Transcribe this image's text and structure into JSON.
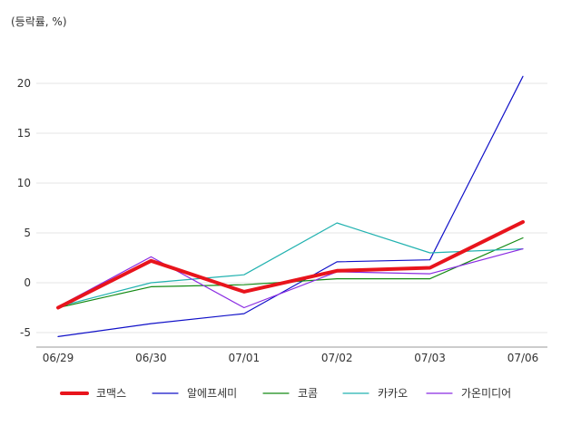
{
  "chart_data": {
    "type": "line",
    "unit_label": "(등락률, %)",
    "categories": [
      "06/29",
      "06/30",
      "07/01",
      "07/02",
      "07/03",
      "07/06"
    ],
    "ylim": [
      -6.5,
      25
    ],
    "yticks": [
      -5,
      0,
      5,
      10,
      15,
      20
    ],
    "grid": true,
    "legend_position": "bottom",
    "series": [
      {
        "name": "코맥스",
        "color": "#e8141c",
        "width": 4,
        "values": [
          -2.5,
          2.2,
          -0.9,
          1.2,
          1.5,
          6.1
        ]
      },
      {
        "name": "알에프세미",
        "color": "#1010c8",
        "width": 1.2,
        "values": [
          -5.4,
          -4.1,
          -3.1,
          2.1,
          2.3,
          20.7
        ]
      },
      {
        "name": "코콤",
        "color": "#138a13",
        "width": 1.2,
        "values": [
          -2.5,
          -0.4,
          -0.2,
          0.4,
          0.4,
          4.5
        ]
      },
      {
        "name": "카카오",
        "color": "#22b2b0",
        "width": 1.2,
        "values": [
          -2.4,
          0.0,
          0.8,
          6.0,
          3.0,
          3.4
        ]
      },
      {
        "name": "가온미디어",
        "color": "#8a2be2",
        "width": 1.2,
        "values": [
          -2.4,
          2.6,
          -2.5,
          1.1,
          0.9,
          3.4
        ]
      }
    ]
  }
}
